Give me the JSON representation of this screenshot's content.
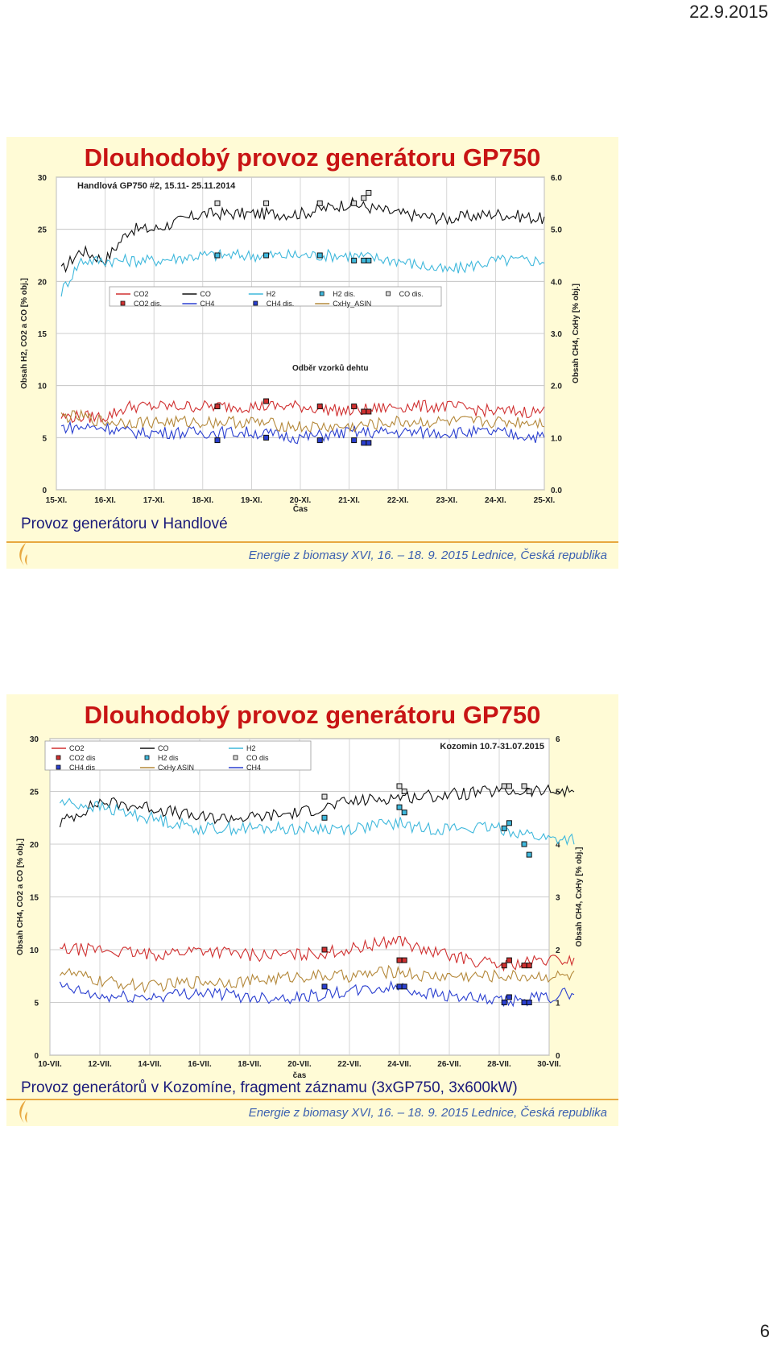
{
  "page": {
    "date": "22.9.2015",
    "number": "6"
  },
  "slides": [
    {
      "title": "Dlouhodobý provoz generátoru GP750",
      "caption": "Provoz generátoru v Handlové",
      "footer": "Energie z biomasy XVI, 16. – 18. 9. 2015  Lednice, Česká republika",
      "chart_data": {
        "type": "line",
        "title": "Handlová GP750 #2, 15.11- 25.11.2014",
        "annotation": "Odběr vzorků dehtu",
        "xlabel": "Čas",
        "ylabel_left": "Obsah H2, CO2 a CO [% obj.]",
        "ylabel_right": "Obsah CH4, CxHy [% obj.]",
        "ylim_left": [
          0,
          30
        ],
        "ylim_right": [
          0.0,
          6.0
        ],
        "yticks_left": [
          "0",
          "5",
          "10",
          "15",
          "20",
          "25",
          "30"
        ],
        "yticks_right": [
          "0.0",
          "1.0",
          "2.0",
          "3.0",
          "4.0",
          "5.0",
          "6.0"
        ],
        "x_categories": [
          "15-XI.",
          "16-XI.",
          "17-XI.",
          "18-XI.",
          "19-XI.",
          "20-XI.",
          "21-XI.",
          "22-XI.",
          "23-XI.",
          "24-XI.",
          "25-XI."
        ],
        "legend": [
          "CO2",
          "CO",
          "H2",
          "H2 dis.",
          "CO dis.",
          "CO2 dis.",
          "CH4",
          "CH4 dis.",
          "CxHy_ASIN"
        ],
        "grid": true,
        "colors": {
          "CO2": "#d03030",
          "CO": "#111111",
          "H2": "#3fb8dc",
          "CH4": "#2a3fd0",
          "CxHy_ASIN": "#b4883a",
          "dis": "#111111"
        },
        "series": [
          {
            "name": "CO",
            "axis": "left",
            "x": [
              0.1,
              0.5,
              1,
              1.5,
              2,
              3,
              4,
              5,
              6,
              7,
              8,
              9,
              10
            ],
            "values": [
              21,
              23,
              22,
              25,
              25,
              26.5,
              26.5,
              26.5,
              27.5,
              26.5,
              26,
              26.5,
              26
            ]
          },
          {
            "name": "H2",
            "axis": "left",
            "x": [
              0.1,
              0.5,
              1,
              1.5,
              2,
              3,
              4,
              5,
              6,
              7,
              8,
              9,
              10
            ],
            "values": [
              19,
              22,
              22,
              22,
              22,
              22.5,
              22.5,
              22.5,
              22.5,
              22,
              21,
              22,
              22
            ]
          },
          {
            "name": "CO2",
            "axis": "left",
            "x": [
              0.1,
              0.5,
              1,
              1.5,
              2,
              3,
              4,
              5,
              6,
              7,
              8,
              9,
              10
            ],
            "values": [
              7,
              7,
              7,
              8,
              8,
              8,
              8,
              8,
              7.5,
              8,
              8,
              7.5,
              7.5
            ]
          },
          {
            "name": "CH4",
            "axis": "right",
            "x": [
              0.1,
              0.5,
              1,
              1.5,
              2,
              3,
              4,
              5,
              6,
              7,
              8,
              9,
              10
            ],
            "values": [
              1.2,
              1.2,
              1.2,
              1.1,
              1.1,
              1.1,
              1.1,
              1.0,
              1.1,
              1.1,
              1.1,
              1.1,
              1.0
            ]
          },
          {
            "name": "CxHy_ASIN",
            "axis": "right",
            "x": [
              0.1,
              0.5,
              1,
              1.5,
              2,
              3,
              4,
              5,
              6,
              7,
              8,
              9,
              10
            ],
            "values": [
              1.4,
              1.4,
              1.3,
              1.3,
              1.3,
              1.3,
              1.3,
              1.2,
              1.2,
              1.3,
              1.3,
              1.3,
              1.3
            ]
          }
        ],
        "markers": [
          {
            "name": "CO dis.",
            "x": [
              3.3,
              4.3,
              5.4,
              6.1,
              6.3,
              6.4
            ],
            "values": [
              27.5,
              27.5,
              27.5,
              27.5,
              28,
              28.5
            ]
          },
          {
            "name": "H2 dis.",
            "x": [
              3.3,
              4.3,
              5.4,
              6.1,
              6.3,
              6.4
            ],
            "values": [
              22.5,
              22.5,
              22.5,
              22,
              22,
              22
            ]
          },
          {
            "name": "CO2 dis.",
            "x": [
              3.3,
              4.3,
              5.4,
              6.1,
              6.3,
              6.4
            ],
            "values": [
              8,
              8.5,
              8,
              8,
              7.5,
              7.5
            ]
          },
          {
            "name": "CH4 dis.",
            "x": [
              3.3,
              4.3,
              5.4,
              6.1,
              6.3,
              6.4
            ],
            "values": [
              0.95,
              1.0,
              0.95,
              0.95,
              0.9,
              0.9
            ]
          }
        ]
      }
    },
    {
      "title": "Dlouhodobý provoz generátoru GP750",
      "caption": "Provoz generátorů v Kozomíne, fragment záznamu (3xGP750, 3x600kW)",
      "footer": "Energie z biomasy XVI, 16. – 18. 9. 2015  Lednice, Česká republika",
      "chart_data": {
        "type": "line",
        "title": "Kozomin 10.7-31.07.2015",
        "xlabel": "čas",
        "ylabel_left": "Obsah CH4, CO2 a CO [% obj.]",
        "ylabel_right": "Obsah CH4, CxHy [% obj.]",
        "ylim_left": [
          0,
          30
        ],
        "ylim_right": [
          0,
          6
        ],
        "yticks_left": [
          "0",
          "5",
          "10",
          "15",
          "20",
          "25",
          "30"
        ],
        "yticks_right": [
          "0",
          "1",
          "2",
          "3",
          "4",
          "5",
          "6"
        ],
        "x_categories": [
          "10-VII.",
          "12-VII.",
          "14-VII.",
          "16-VII.",
          "18-VII.",
          "20-VII.",
          "22-VII.",
          "24-VII.",
          "26-VII.",
          "28-VII.",
          "30-VII."
        ],
        "legend": [
          "CO2",
          "CO",
          "H2",
          "CO2 dis",
          "H2 dis",
          "CO dis",
          "CH4 dis",
          "CxHy ASIN",
          "CH4"
        ],
        "grid": true,
        "colors": {
          "CO2": "#d03030",
          "CO": "#111111",
          "H2": "#3fb8dc",
          "CH4": "#2a3fd0",
          "CxHy_ASIN": "#b4883a",
          "dis": "#111111"
        },
        "series": [
          {
            "name": "CO",
            "axis": "left",
            "x": [
              0.2,
              1,
              2,
              3,
              4,
              5,
              6,
              7,
              7.4,
              9,
              10,
              10.5
            ],
            "values": [
              22,
              24,
              23.5,
              22.5,
              22.5,
              23,
              24,
              24.5,
              24.5,
              25,
              25,
              25
            ]
          },
          {
            "name": "H2",
            "axis": "left",
            "x": [
              0.2,
              1,
              2,
              3,
              4,
              5,
              6,
              7,
              7.4,
              9,
              10,
              10.5
            ],
            "values": [
              24,
              23.5,
              22.5,
              21.5,
              21.5,
              21.5,
              21.5,
              22,
              21.5,
              21.5,
              20.5,
              20.5
            ]
          },
          {
            "name": "CO2",
            "axis": "left",
            "x": [
              0.2,
              1,
              2,
              3,
              4,
              5,
              6,
              7,
              7.4,
              9,
              10,
              10.5
            ],
            "values": [
              10,
              10,
              9.5,
              10,
              9.5,
              9.5,
              10,
              11,
              10,
              8.5,
              9,
              9
            ]
          },
          {
            "name": "CH4",
            "axis": "right",
            "x": [
              0.2,
              1,
              2,
              3,
              4,
              5,
              6,
              7,
              7.4,
              9,
              10,
              10.5
            ],
            "values": [
              1.3,
              1.1,
              1.1,
              1.2,
              1.1,
              1.1,
              1.2,
              1.3,
              1.2,
              1.0,
              1.1,
              1.2
            ]
          },
          {
            "name": "CxHy ASIN",
            "axis": "right",
            "x": [
              0.2,
              1,
              2,
              3,
              4,
              5,
              6,
              7,
              7.4,
              9,
              10,
              10.5
            ],
            "values": [
              1.6,
              1.4,
              1.3,
              1.4,
              1.4,
              1.5,
              1.5,
              1.6,
              1.5,
              1.5,
              1.5,
              1.5
            ]
          }
        ],
        "markers": [
          {
            "name": "CO dis",
            "x": [
              5.5,
              7,
              7.1,
              9.1,
              9.2,
              9.5,
              9.6
            ],
            "values": [
              24.5,
              25.5,
              25,
              25.5,
              25.5,
              25.5,
              25
            ]
          },
          {
            "name": "H2 dis",
            "x": [
              5.5,
              7,
              7.1,
              9.1,
              9.2,
              9.5,
              9.6
            ],
            "values": [
              22.5,
              23.5,
              23,
              21.5,
              22,
              20,
              19
            ]
          },
          {
            "name": "CO2 dis",
            "x": [
              5.5,
              7,
              7.1,
              9.1,
              9.2,
              9.5,
              9.6
            ],
            "values": [
              10,
              9,
              9,
              8.5,
              9,
              8.5,
              8.5
            ]
          },
          {
            "name": "CH4 dis",
            "x": [
              5.5,
              7,
              7.1,
              9.1,
              9.2,
              9.5,
              9.6
            ],
            "values": [
              1.3,
              1.3,
              1.3,
              1.0,
              1.1,
              1.0,
              1.0
            ]
          }
        ]
      }
    }
  ]
}
